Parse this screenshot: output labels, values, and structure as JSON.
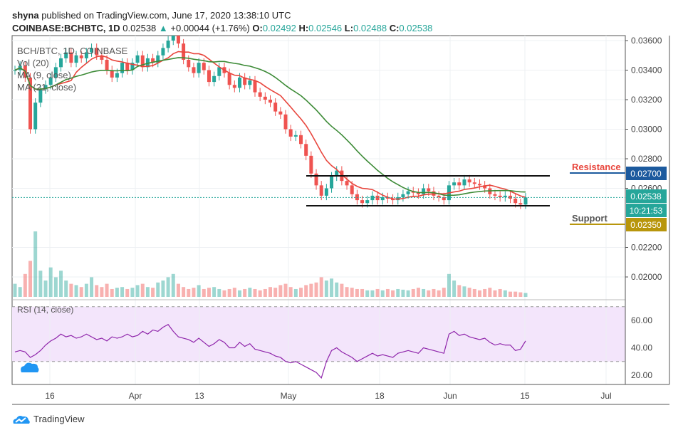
{
  "header": {
    "publisher": "shyna",
    "published_text": "published on TradingView.com, June 17, 2020 13:38:10 UTC",
    "symbol": "COINBASE:BCHBTC, 1D",
    "last": "0.02538",
    "change": "+0.00044 (+1.76%)",
    "o_label": "O:",
    "o": "0.02492",
    "h_label": "H:",
    "h": "0.02546",
    "l_label": "L:",
    "l": "0.02488",
    "c_label": "C:",
    "c": "0.02538"
  },
  "legend": [
    "BCH/BTC, 1D, COINBASE",
    "Vol (20)",
    "MA (9, close)",
    "MA (21, close)"
  ],
  "rsi_label": "RSI (14, close)",
  "annotations": {
    "resistance": "Resistance",
    "resistance_price": "0.02700",
    "support": "Support",
    "support_price": "0.02350",
    "current_price": "0.02538",
    "countdown": "10:21:53"
  },
  "colors": {
    "up": "#26a69a",
    "down": "#ef5350",
    "ma9": "#e8453c",
    "ma21": "#3d8b37",
    "resistance": "#1c5a9e",
    "support": "#b8960c",
    "rsi": "#8e24aa",
    "rsi_band": "#f3e5fb"
  },
  "brand": "TradingView",
  "chart_data": {
    "type": "candlestick",
    "price_ticks": [
      "0.03600",
      "0.03400",
      "0.03200",
      "0.03000",
      "0.02800",
      "0.02600",
      "0.02200",
      "0.02000"
    ],
    "rsi_ticks": [
      "60.00",
      "40.00",
      "20.00"
    ],
    "x_ticks": [
      "16",
      "Apr",
      "13",
      "May",
      "18",
      "Jun",
      "15",
      "Jul"
    ],
    "dates_start": "2020-03-09",
    "close": [
      0.034,
      0.0343,
      0.0335,
      0.03,
      0.0318,
      0.0327,
      0.033,
      0.0335,
      0.0342,
      0.0348,
      0.0352,
      0.0345,
      0.035,
      0.0348,
      0.0352,
      0.0355,
      0.035,
      0.0347,
      0.034,
      0.0335,
      0.0338,
      0.0345,
      0.034,
      0.0345,
      0.035,
      0.0342,
      0.0348,
      0.0345,
      0.035,
      0.0355,
      0.036,
      0.0365,
      0.0358,
      0.0347,
      0.0342,
      0.0338,
      0.0345,
      0.034,
      0.0332,
      0.0336,
      0.0342,
      0.0338,
      0.033,
      0.0328,
      0.0335,
      0.033,
      0.0333,
      0.0325,
      0.0322,
      0.032,
      0.0318,
      0.0312,
      0.031,
      0.03,
      0.0295,
      0.0296,
      0.029,
      0.0282,
      0.027,
      0.0262,
      0.0255,
      0.026,
      0.0268,
      0.0272,
      0.0265,
      0.0262,
      0.0256,
      0.0252,
      0.025,
      0.0252,
      0.0255,
      0.0252,
      0.0254,
      0.0253,
      0.0252,
      0.0254,
      0.0256,
      0.0258,
      0.0257,
      0.0256,
      0.026,
      0.0258,
      0.0255,
      0.0254,
      0.0252,
      0.0262,
      0.0264,
      0.0262,
      0.0266,
      0.0264,
      0.0263,
      0.0262,
      0.026,
      0.0256,
      0.0255,
      0.0254,
      0.0255,
      0.0253,
      0.025,
      0.0249,
      0.02538
    ],
    "volume": [
      20,
      15,
      35,
      55,
      100,
      40,
      25,
      45,
      30,
      40,
      25,
      20,
      18,
      15,
      20,
      30,
      18,
      15,
      20,
      12,
      14,
      15,
      12,
      14,
      18,
      20,
      15,
      14,
      22,
      25,
      30,
      35,
      20,
      15,
      12,
      14,
      18,
      12,
      14,
      15,
      12,
      10,
      12,
      14,
      10,
      12,
      14,
      12,
      10,
      12,
      15,
      14,
      18,
      20,
      15,
      12,
      14,
      18,
      20,
      22,
      30,
      25,
      28,
      22,
      20,
      15,
      14,
      12,
      12,
      10,
      10,
      12,
      10,
      12,
      10,
      12,
      11,
      10,
      12,
      14,
      12,
      10,
      12,
      10,
      14,
      35,
      25,
      18,
      16,
      14,
      12,
      10,
      12,
      14,
      10,
      12,
      10,
      8,
      8,
      7,
      6
    ],
    "rsi": [
      37,
      38,
      37,
      33,
      35,
      38,
      42,
      45,
      47,
      50,
      48,
      49,
      47,
      48,
      50,
      48,
      46,
      47,
      45,
      48,
      47,
      48,
      50,
      48,
      49,
      52,
      50,
      53,
      52,
      55,
      57,
      52,
      48,
      47,
      46,
      44,
      47,
      44,
      41,
      43,
      46,
      44,
      40,
      40,
      44,
      41,
      43,
      39,
      38,
      37,
      36,
      34,
      33,
      30,
      29,
      30,
      28,
      26,
      24,
      22,
      18,
      30,
      38,
      40,
      37,
      35,
      33,
      30,
      32,
      34,
      36,
      34,
      35,
      34,
      33,
      36,
      37,
      38,
      37,
      36,
      40,
      39,
      38,
      37,
      36,
      50,
      52,
      49,
      50,
      48,
      47,
      46,
      47,
      44,
      42,
      43,
      42,
      42,
      38,
      39,
      45
    ],
    "resistance": 0.027,
    "support": 0.0235,
    "rsi_band": [
      30,
      70
    ]
  }
}
